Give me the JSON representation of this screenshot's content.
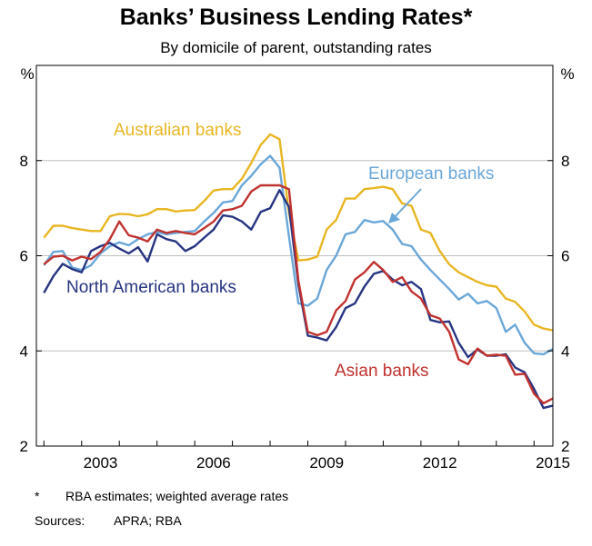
{
  "chart_data": {
    "type": "line",
    "title": "Banks’ Business Lending Rates*",
    "subtitle": "By domicile of parent, outstanding rates",
    "ylabel_left": "%",
    "ylabel_right": "%",
    "ylim": [
      2,
      10
    ],
    "yticks": [
      "2",
      "4",
      "6",
      "8"
    ],
    "xlim": [
      2001.8,
      2015.5
    ],
    "xticks": [
      "2003",
      "2006",
      "2009",
      "2012",
      "2015"
    ],
    "grid": true,
    "series": [
      {
        "name": "Australian banks",
        "color": "#E8B623",
        "x": [
          2002.0,
          2002.25,
          2002.5,
          2002.75,
          2003.0,
          2003.25,
          2003.5,
          2003.75,
          2004.0,
          2004.25,
          2004.5,
          2004.75,
          2005.0,
          2005.25,
          2005.5,
          2005.75,
          2006.0,
          2006.25,
          2006.5,
          2006.75,
          2007.0,
          2007.25,
          2007.5,
          2007.75,
          2008.0,
          2008.25,
          2008.5,
          2008.75,
          2009.0,
          2009.25,
          2009.5,
          2009.75,
          2010.0,
          2010.25,
          2010.5,
          2010.75,
          2011.0,
          2011.25,
          2011.5,
          2011.75,
          2012.0,
          2012.25,
          2012.5,
          2012.75,
          2013.0,
          2013.25,
          2013.5,
          2013.75,
          2014.0,
          2014.25,
          2014.5,
          2014.75,
          2015.0,
          2015.25,
          2015.5
        ],
        "values": [
          6.38,
          6.63,
          6.63,
          6.58,
          6.55,
          6.52,
          6.52,
          6.83,
          6.88,
          6.87,
          6.83,
          6.87,
          6.98,
          6.98,
          6.93,
          6.95,
          6.96,
          7.15,
          7.37,
          7.4,
          7.4,
          7.62,
          7.95,
          8.33,
          8.55,
          8.45,
          6.9,
          5.9,
          5.92,
          5.98,
          6.55,
          6.75,
          7.2,
          7.2,
          7.4,
          7.42,
          7.45,
          7.4,
          7.1,
          7.05,
          6.55,
          6.48,
          6.1,
          5.82,
          5.65,
          5.55,
          5.45,
          5.38,
          5.35,
          5.1,
          5.03,
          4.83,
          4.55,
          4.47,
          4.43
        ]
      },
      {
        "name": "European banks",
        "color": "#6BA7D8",
        "x": [
          2002.0,
          2002.25,
          2002.5,
          2002.75,
          2003.0,
          2003.25,
          2003.5,
          2003.75,
          2004.0,
          2004.25,
          2004.5,
          2004.75,
          2005.0,
          2005.25,
          2005.5,
          2005.75,
          2006.0,
          2006.25,
          2006.5,
          2006.75,
          2007.0,
          2007.25,
          2007.5,
          2007.75,
          2008.0,
          2008.25,
          2008.5,
          2008.75,
          2009.0,
          2009.25,
          2009.5,
          2009.75,
          2010.0,
          2010.25,
          2010.5,
          2010.75,
          2011.0,
          2011.25,
          2011.5,
          2011.75,
          2012.0,
          2012.25,
          2012.5,
          2012.75,
          2013.0,
          2013.25,
          2013.5,
          2013.75,
          2014.0,
          2014.25,
          2014.5,
          2014.75,
          2015.0,
          2015.25,
          2015.5
        ],
        "values": [
          5.8,
          6.08,
          6.1,
          5.75,
          5.7,
          5.8,
          6.05,
          6.2,
          6.28,
          6.22,
          6.35,
          6.45,
          6.5,
          6.45,
          6.48,
          6.5,
          6.52,
          6.72,
          6.9,
          7.12,
          7.15,
          7.48,
          7.68,
          7.92,
          8.1,
          7.85,
          6.4,
          5.0,
          4.95,
          5.1,
          5.7,
          6.0,
          6.45,
          6.5,
          6.75,
          6.7,
          6.73,
          6.55,
          6.25,
          6.2,
          5.92,
          5.7,
          5.5,
          5.3,
          5.08,
          5.2,
          5.0,
          5.05,
          4.9,
          4.4,
          4.55,
          4.17,
          3.95,
          3.93,
          4.04
        ]
      },
      {
        "name": "North American banks",
        "color": "#273582",
        "x": [
          2002.0,
          2002.25,
          2002.5,
          2002.75,
          2003.0,
          2003.25,
          2003.5,
          2003.75,
          2004.0,
          2004.25,
          2004.5,
          2004.75,
          2005.0,
          2005.25,
          2005.5,
          2005.75,
          2006.0,
          2006.25,
          2006.5,
          2006.75,
          2007.0,
          2007.25,
          2007.5,
          2007.75,
          2008.0,
          2008.25,
          2008.5,
          2008.75,
          2009.0,
          2009.25,
          2009.5,
          2009.75,
          2010.0,
          2010.25,
          2010.5,
          2010.75,
          2011.0,
          2011.25,
          2011.5,
          2011.75,
          2012.0,
          2012.25,
          2012.5,
          2012.75,
          2013.0,
          2013.25,
          2013.5,
          2013.75,
          2014.0,
          2014.25,
          2014.5,
          2014.75,
          2015.0,
          2015.25,
          2015.5
        ],
        "values": [
          5.22,
          5.57,
          5.83,
          5.72,
          5.65,
          6.1,
          6.2,
          6.27,
          6.15,
          6.05,
          6.18,
          5.88,
          6.45,
          6.35,
          6.3,
          6.1,
          6.2,
          6.38,
          6.55,
          6.85,
          6.82,
          6.72,
          6.55,
          6.92,
          7.0,
          7.38,
          7.02,
          5.4,
          4.32,
          4.28,
          4.22,
          4.5,
          4.9,
          5.0,
          5.35,
          5.62,
          5.68,
          5.5,
          5.38,
          5.45,
          5.3,
          4.65,
          4.6,
          4.62,
          4.17,
          3.87,
          4.03,
          3.9,
          3.9,
          3.93,
          3.65,
          3.55,
          3.2,
          2.8,
          2.85
        ]
      },
      {
        "name": "Asian banks",
        "color": "#C0322F",
        "x": [
          2002.0,
          2002.25,
          2002.5,
          2002.75,
          2003.0,
          2003.25,
          2003.5,
          2003.75,
          2004.0,
          2004.25,
          2004.5,
          2004.75,
          2005.0,
          2005.25,
          2005.5,
          2005.75,
          2006.0,
          2006.25,
          2006.5,
          2006.75,
          2007.0,
          2007.25,
          2007.5,
          2007.75,
          2008.0,
          2008.25,
          2008.5,
          2008.75,
          2009.0,
          2009.25,
          2009.5,
          2009.75,
          2010.0,
          2010.25,
          2010.5,
          2010.75,
          2011.0,
          2011.25,
          2011.5,
          2011.75,
          2012.0,
          2012.25,
          2012.5,
          2012.75,
          2013.0,
          2013.25,
          2013.5,
          2013.75,
          2014.0,
          2014.25,
          2014.5,
          2014.75,
          2015.0,
          2015.25,
          2015.5
        ],
        "values": [
          5.82,
          5.98,
          6.0,
          5.9,
          5.98,
          5.93,
          6.08,
          6.35,
          6.72,
          6.43,
          6.38,
          6.3,
          6.55,
          6.48,
          6.52,
          6.48,
          6.45,
          6.58,
          6.72,
          6.95,
          6.98,
          7.05,
          7.35,
          7.48,
          7.48,
          7.48,
          7.4,
          5.48,
          4.4,
          4.33,
          4.4,
          4.85,
          5.05,
          5.5,
          5.65,
          5.87,
          5.7,
          5.45,
          5.55,
          5.25,
          5.1,
          4.75,
          4.68,
          4.4,
          3.82,
          3.72,
          4.05,
          3.9,
          3.92,
          3.9,
          3.5,
          3.52,
          3.1,
          2.9,
          3.0
        ]
      }
    ],
    "annotations": {
      "australian": "Australian banks",
      "european": "European banks",
      "north_american": "North American banks",
      "asian": "Asian banks"
    }
  },
  "title_top_fragment": "Banks’ Business Lending Rates*",
  "notes": {
    "star": "*",
    "star_text": "RBA estimates; weighted average rates",
    "sources_label": "Sources:",
    "sources_text": "APRA; RBA"
  }
}
